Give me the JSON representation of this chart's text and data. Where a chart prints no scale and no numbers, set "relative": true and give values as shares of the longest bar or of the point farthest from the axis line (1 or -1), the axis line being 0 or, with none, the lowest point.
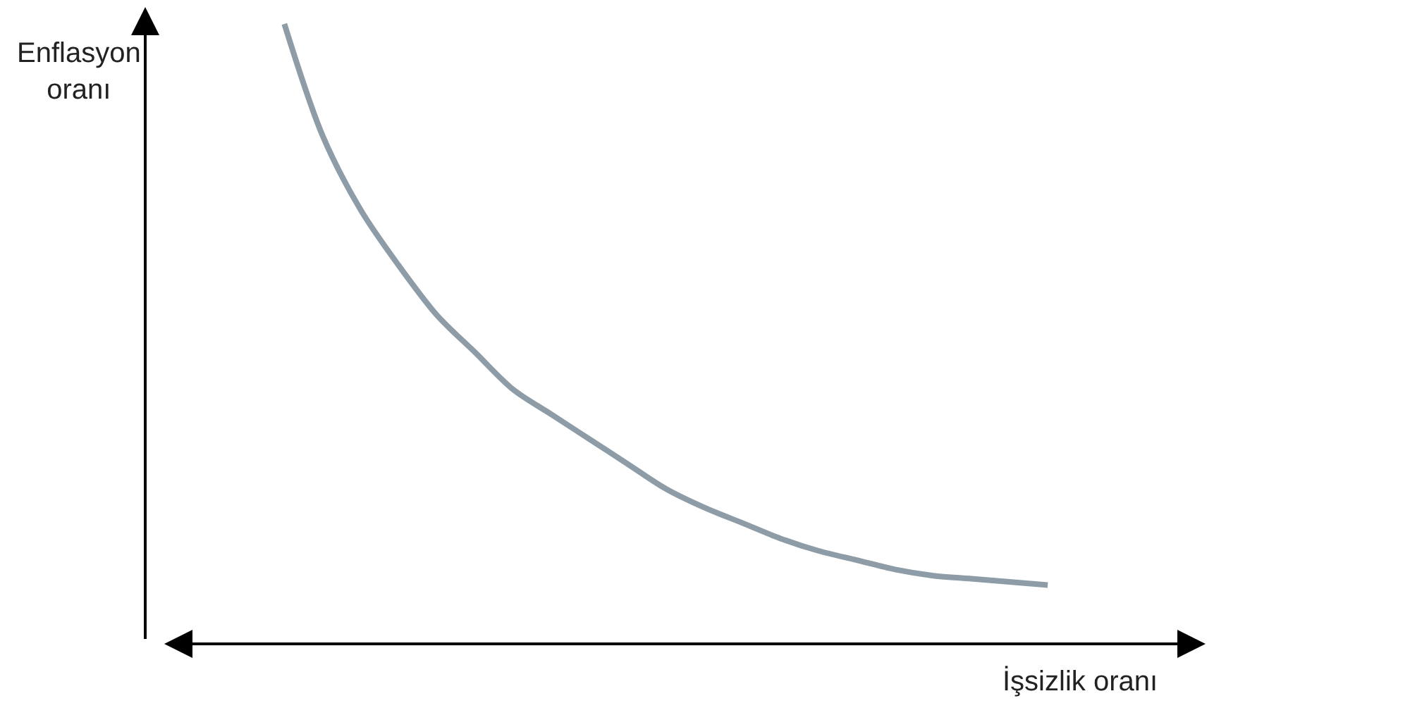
{
  "chart_data": {
    "type": "line",
    "xlabel": "İşsizlik oranı",
    "ylabel": "Enflasyon\noranı",
    "relative": true,
    "categories": [
      null,
      null,
      null,
      null,
      null,
      null,
      null,
      null,
      null,
      null,
      null,
      null,
      null,
      null,
      null,
      null,
      null,
      null,
      null,
      null,
      null
    ],
    "series": [
      {
        "color": "#8d9ca6",
        "values": [
          1.0,
          0.82,
          0.7,
          0.61,
          0.53,
          0.47,
          0.41,
          0.37,
          0.33,
          0.29,
          0.25,
          0.22,
          0.195,
          0.17,
          0.15,
          0.135,
          0.12,
          0.11,
          0.105,
          0.1,
          0.095
        ]
      }
    ]
  }
}
